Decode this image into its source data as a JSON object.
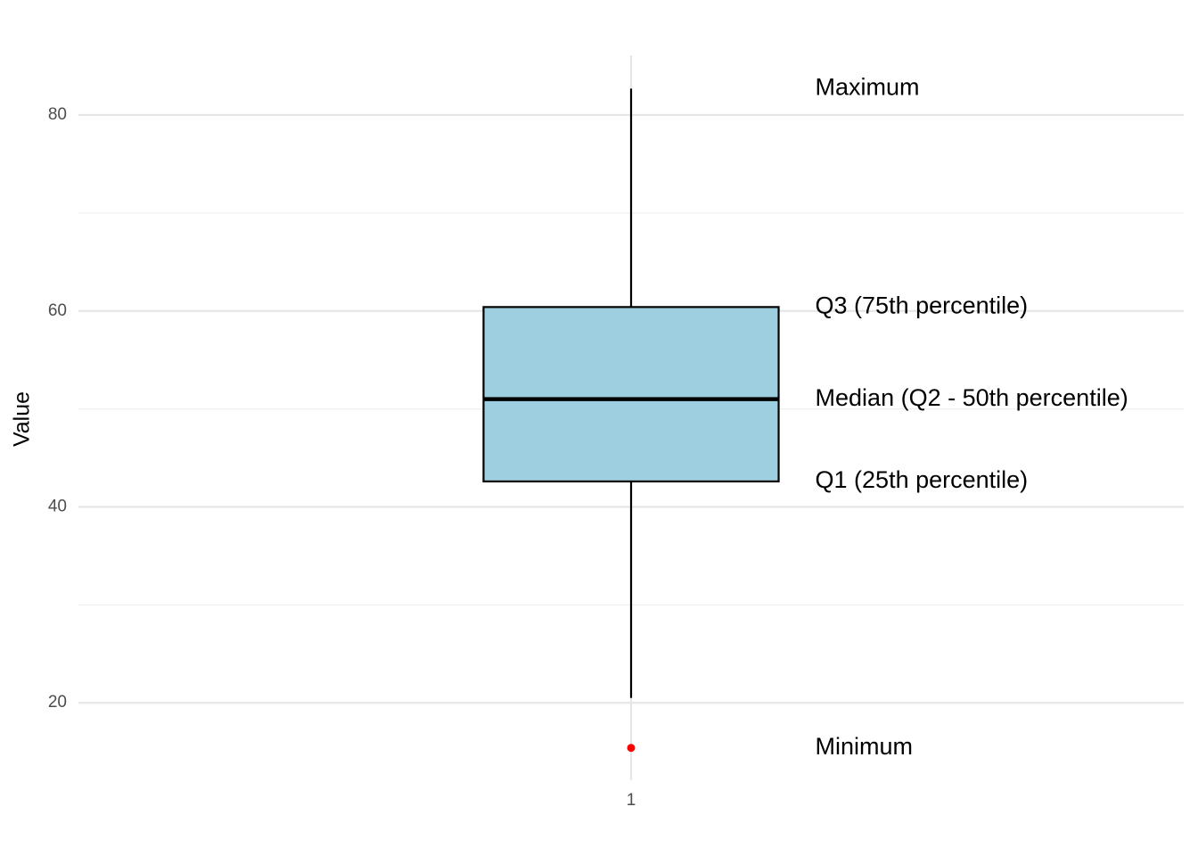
{
  "chart_data": {
    "type": "box",
    "y_label": "Value",
    "categories": [
      "1"
    ],
    "box": {
      "whislo": 20.5,
      "q1": 42.6,
      "med": 51.0,
      "q3": 60.4,
      "whishi": 82.7
    },
    "outliers": [
      15.4
    ],
    "annotations": {
      "whishi": "Maximum",
      "q3": "Q3 (75th percentile)",
      "med": "Median (Q2 - 50th percentile)",
      "q1": "Q1 (25th percentile)",
      "outlier": "Minimum"
    },
    "color": "#9ecfe0",
    "outlier_color": "#ff0000",
    "ylim": [
      12.1,
      86.1
    ],
    "yticks": [
      20,
      40,
      60,
      80
    ],
    "yminor": [
      30,
      50,
      70
    ],
    "grid": true
  }
}
